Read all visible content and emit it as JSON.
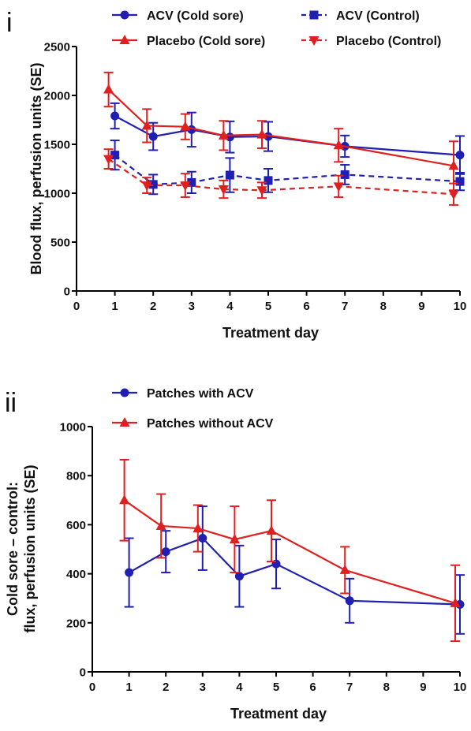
{
  "chart_data": [
    {
      "panel_label": "i",
      "type": "line",
      "xlabel": "Treatment day",
      "ylabel": "Blood flux, perfusion units (SE)",
      "xlim": [
        0,
        10
      ],
      "ylim": [
        0,
        2500
      ],
      "xticks": [
        "0",
        "1",
        "2",
        "3",
        "4",
        "5",
        "6",
        "7",
        "8",
        "9",
        "10"
      ],
      "yticks": [
        "0",
        "500",
        "1000",
        "1500",
        "2000",
        "2500"
      ],
      "x": [
        1,
        2,
        3,
        4,
        5,
        7,
        10
      ],
      "legend_placement": "top",
      "series": [
        {
          "name": "ACV (Cold sore)",
          "color": "#1f1fb4",
          "marker": "circle",
          "dash": "solid",
          "values": [
            1790,
            1580,
            1650,
            1575,
            1580,
            1480,
            1390
          ],
          "err": [
            130,
            140,
            175,
            160,
            150,
            110,
            195
          ]
        },
        {
          "name": "Placebo (Cold sore)",
          "color": "#e02020",
          "marker": "triangle-up",
          "dash": "solid",
          "values": [
            2060,
            1690,
            1680,
            1590,
            1600,
            1490,
            1280
          ],
          "err": [
            175,
            170,
            130,
            150,
            140,
            170,
            250
          ]
        },
        {
          "name": "ACV (Control)",
          "color": "#1f1fb4",
          "marker": "square",
          "dash": "dashed",
          "values": [
            1390,
            1090,
            1110,
            1185,
            1130,
            1190,
            1120
          ],
          "err": [
            150,
            100,
            110,
            175,
            120,
            100,
            90
          ]
        },
        {
          "name": "Placebo (Control)",
          "color": "#e02020",
          "marker": "triangle-down",
          "dash": "dashed",
          "values": [
            1350,
            1080,
            1080,
            1040,
            1030,
            1070,
            990
          ],
          "err": [
            100,
            80,
            120,
            90,
            80,
            110,
            110
          ]
        }
      ]
    },
    {
      "panel_label": "ii",
      "type": "line",
      "xlabel": "Treatment day",
      "ylabel_line1": "Cold sore – control:",
      "ylabel_line2": "flux, perfusion units (SE)",
      "xlim": [
        0,
        10
      ],
      "ylim": [
        0,
        1000
      ],
      "xticks": [
        "0",
        "1",
        "2",
        "3",
        "4",
        "5",
        "6",
        "7",
        "8",
        "9",
        "10"
      ],
      "yticks": [
        "0",
        "200",
        "400",
        "600",
        "800",
        "1000"
      ],
      "x": [
        1,
        2,
        3,
        4,
        5,
        7,
        10
      ],
      "legend_placement": "top-left",
      "series": [
        {
          "name": "Patches with ACV",
          "color": "#1f1fb4",
          "marker": "circle",
          "dash": "solid",
          "values": [
            405,
            490,
            545,
            390,
            440,
            290,
            275
          ],
          "err": [
            140,
            85,
            130,
            125,
            100,
            90,
            120
          ]
        },
        {
          "name": "Patches without ACV",
          "color": "#e02020",
          "marker": "triangle-up",
          "dash": "solid",
          "values": [
            700,
            595,
            585,
            540,
            575,
            415,
            280
          ],
          "err": [
            165,
            130,
            95,
            135,
            125,
            95,
            155
          ]
        }
      ]
    }
  ]
}
